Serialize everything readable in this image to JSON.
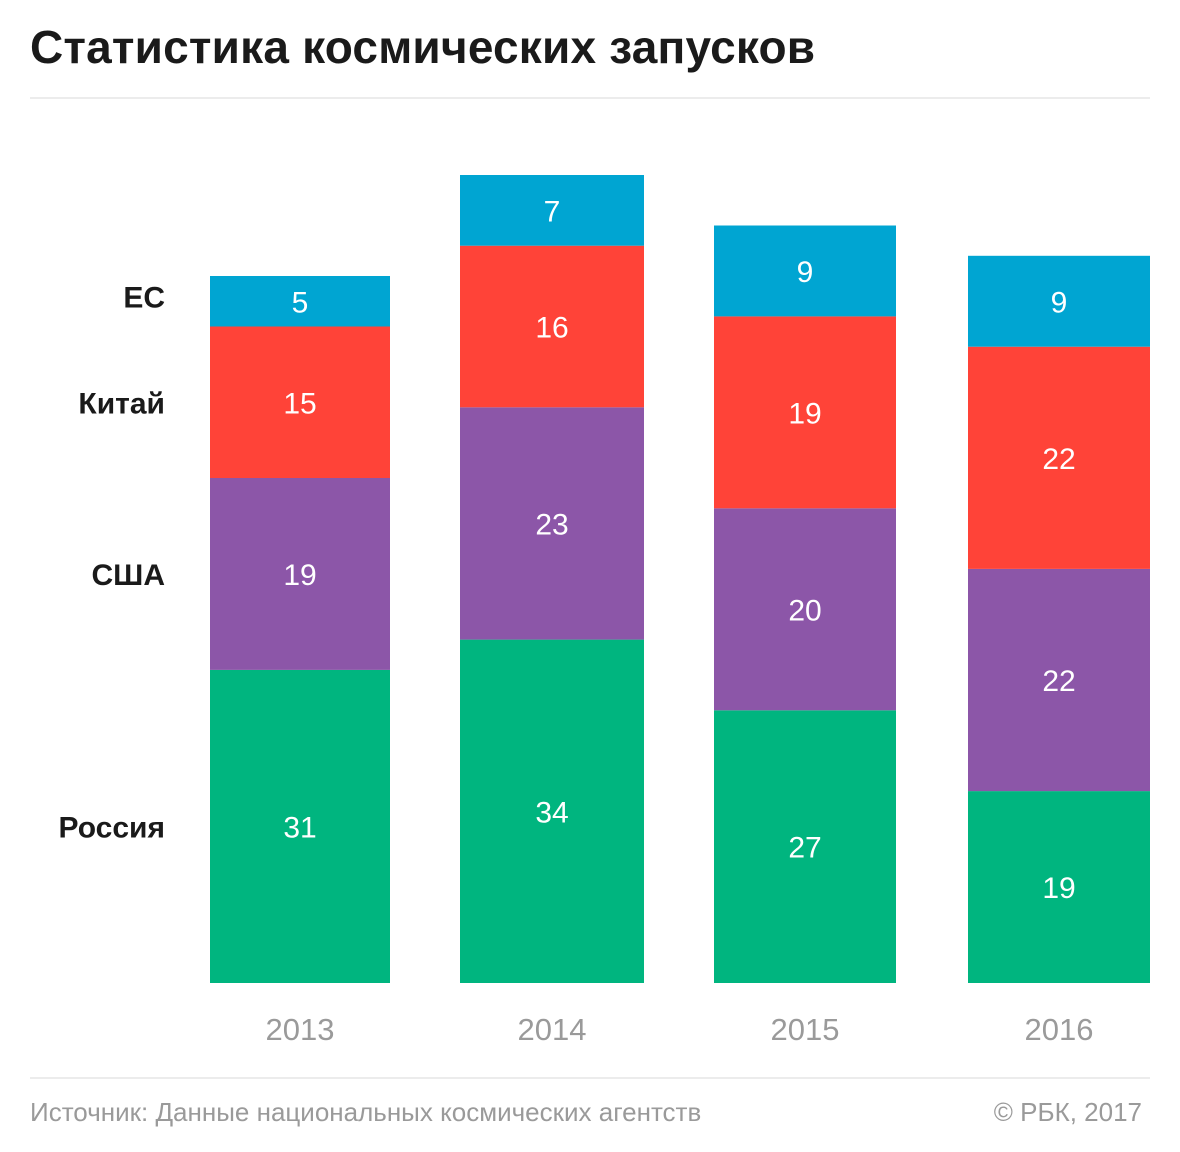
{
  "title": "Статистика космических запусков",
  "footer": {
    "source": "Источник: Данные национальных космических агентств",
    "copyright": "© РБК, 2017"
  },
  "chart_data": {
    "type": "bar",
    "stacked": true,
    "categories": [
      "2013",
      "2014",
      "2015",
      "2016"
    ],
    "series": [
      {
        "name": "Россия",
        "color": "#00b57f",
        "values": [
          31,
          34,
          27,
          19
        ]
      },
      {
        "name": "США",
        "color": "#8c56a8",
        "values": [
          19,
          23,
          20,
          22
        ]
      },
      {
        "name": "Китай",
        "color": "#ff4338",
        "values": [
          15,
          16,
          19,
          22
        ]
      },
      {
        "name": "ЕС",
        "color": "#00a5d2",
        "values": [
          5,
          7,
          9,
          9
        ]
      }
    ],
    "legend": "left, aligned with the 2013 column segments",
    "grid": false,
    "data_labels": true
  }
}
